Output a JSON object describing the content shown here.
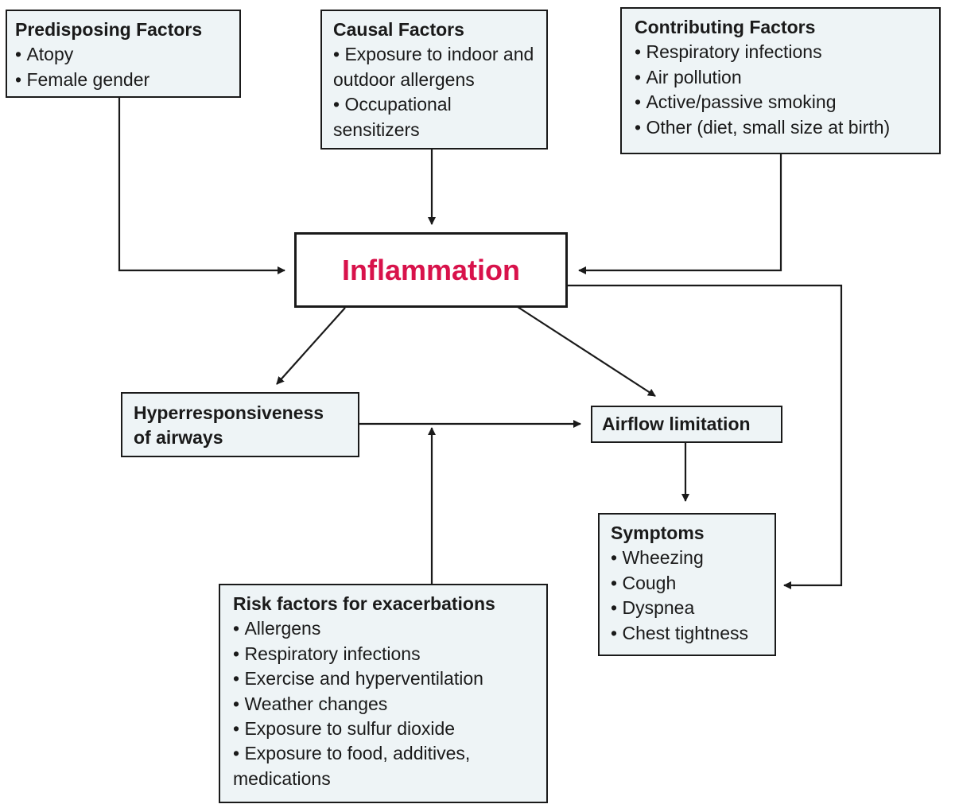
{
  "predisposing": {
    "title": "Predisposing Factors",
    "items": [
      "Atopy",
      "Female gender"
    ]
  },
  "causal": {
    "title": "Causal Factors",
    "items": [
      "Exposure to indoor and outdoor allergens",
      "Occupational sensitizers"
    ]
  },
  "contributing": {
    "title": "Contributing Factors",
    "items": [
      "Respiratory infections",
      "Air pollution",
      "Active/passive smoking",
      "Other (diet, small size at birth)"
    ]
  },
  "center": {
    "title": "Inflammation",
    "color": "#d8124b"
  },
  "hyper": {
    "title_line1": "Hyperresponsiveness",
    "title_line2": "of airways"
  },
  "airflow": {
    "title": "Airflow limitation"
  },
  "symptoms": {
    "title": "Symptoms",
    "items": [
      "Wheezing",
      "Cough",
      "Dyspnea",
      "Chest tightness"
    ]
  },
  "risk": {
    "title": "Risk factors for exacerbations",
    "items": [
      "Allergens",
      "Respiratory infections",
      "Exercise and hyperventilation",
      "Weather changes",
      "Exposure to sulfur dioxide",
      "Exposure to food, additives, medications"
    ]
  },
  "box_fill": "#eef4f6"
}
